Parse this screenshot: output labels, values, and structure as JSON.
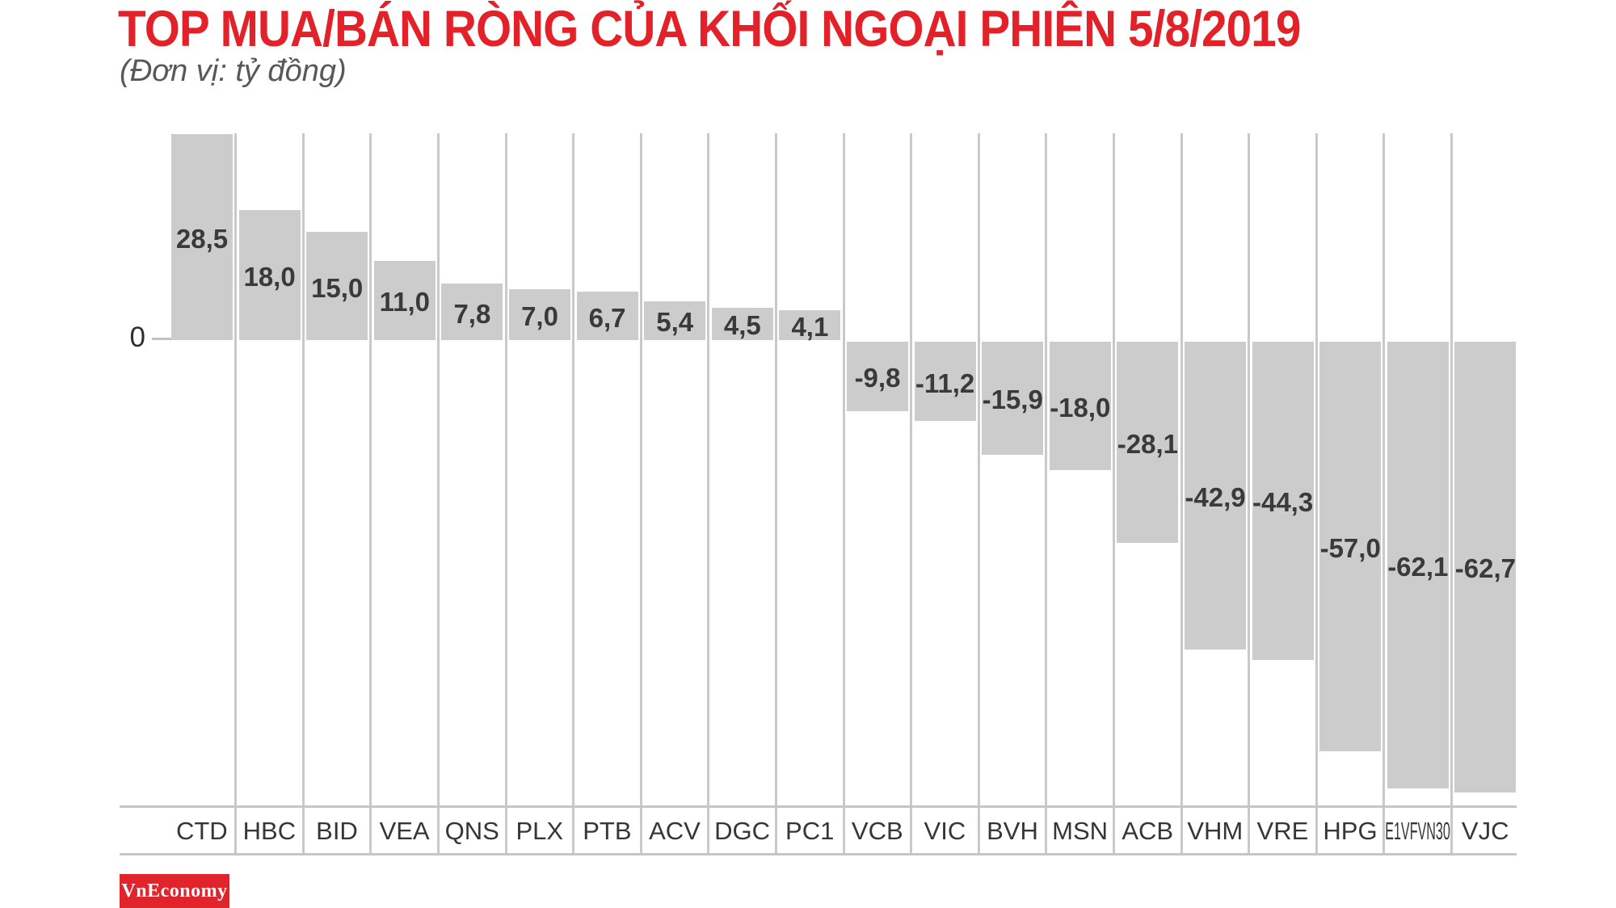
{
  "header": {
    "title": "TOP MUA/BÁN RÒNG CỦA KHỐI NGOẠI PHIÊN 5/8/2019",
    "subtitle": "(Đơn vị: tỷ đồng)"
  },
  "chart_data": {
    "type": "bar",
    "title": "TOP MUA/BÁN RÒNG CỦA KHỐI NGOẠI PHIÊN 5/8/2019",
    "unit_note": "(Đơn vị: tỷ đồng)",
    "categories": [
      "CTD",
      "HBC",
      "BID",
      "VEA",
      "QNS",
      "PLX",
      "PTB",
      "ACV",
      "DGC",
      "PC1",
      "VCB",
      "VIC",
      "BVH",
      "MSN",
      "ACB",
      "VHM",
      "VRE",
      "HPG",
      "E1VFVN30",
      "VJC"
    ],
    "values": [
      28.5,
      18.0,
      15.0,
      11.0,
      7.8,
      7.0,
      6.7,
      5.4,
      4.5,
      4.1,
      -9.8,
      -11.2,
      -15.9,
      -18.0,
      -28.1,
      -42.9,
      -44.3,
      -57.0,
      -62.1,
      -62.7
    ],
    "value_labels": [
      "28,5",
      "18,0",
      "15,0",
      "11,0",
      "7,8",
      "7,0",
      "6,7",
      "5,4",
      "4,5",
      "4,1",
      "-9,8",
      "-11,2",
      "-15,9",
      "-18,0",
      "-28,1",
      "-42,9",
      "-44,3",
      "-57,0",
      "-62,1",
      "-62,7"
    ],
    "zero_label": "0",
    "ylim": [
      -64.5,
      28.5
    ],
    "xlabel": "",
    "ylabel": "",
    "legend": "none",
    "grid": "vertical-category-separators"
  },
  "colors": {
    "title_red": "#e32128",
    "subtitle_gray": "#58585a",
    "bar_fill": "#cccccc",
    "grid_gray": "#c9c9c9",
    "axis_line_gray": "#c6c6c6",
    "value_text": "#3a3a3a",
    "category_text": "#363636",
    "zero_text": "#2f2f2f",
    "zero_tick": "#c2c2c2",
    "logo_bg": "#e1242b",
    "logo_text": "#ffffff"
  },
  "branding": {
    "logo_text": "VnEconomy"
  }
}
